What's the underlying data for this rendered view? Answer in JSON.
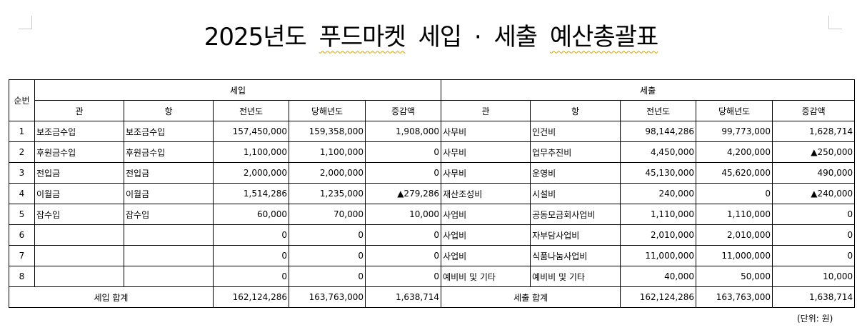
{
  "title": {
    "prefix": "2025년도",
    "name": "푸드마켓",
    "middle": "세입 · 세출",
    "suffix": "예산총괄표"
  },
  "table": {
    "col_no": "순번",
    "income_group": "세입",
    "expense_group": "세출",
    "sub_headers": {
      "gwan": "관",
      "hang": "항",
      "prev": "전년도",
      "curr": "당해년도",
      "diff": "증감액"
    },
    "rows": [
      {
        "no": "1",
        "in_gwan": "보조금수입",
        "in_hang": "보조금수입",
        "in_prev": "157,450,000",
        "in_curr": "159,358,000",
        "in_diff": "1,908,000",
        "ex_gwan": "사무비",
        "ex_hang": "인건비",
        "ex_prev": "98,144,286",
        "ex_curr": "99,773,000",
        "ex_diff": "1,628,714"
      },
      {
        "no": "2",
        "in_gwan": "후원금수입",
        "in_hang": "후원금수입",
        "in_prev": "1,100,000",
        "in_curr": "1,100,000",
        "in_diff": "0",
        "ex_gwan": "사무비",
        "ex_hang": "업무추진비",
        "ex_prev": "4,450,000",
        "ex_curr": "4,200,000",
        "ex_diff": "▲250,000"
      },
      {
        "no": "3",
        "in_gwan": "전입금",
        "in_hang": "전입금",
        "in_prev": "2,000,000",
        "in_curr": "2,000,000",
        "in_diff": "0",
        "ex_gwan": "사무비",
        "ex_hang": "운영비",
        "ex_prev": "45,130,000",
        "ex_curr": "45,620,000",
        "ex_diff": "490,000"
      },
      {
        "no": "4",
        "in_gwan": "이월금",
        "in_hang": "이월금",
        "in_prev": "1,514,286",
        "in_curr": "1,235,000",
        "in_diff": "▲279,286",
        "ex_gwan": "재산조성비",
        "ex_hang": "시설비",
        "ex_prev": "240,000",
        "ex_curr": "0",
        "ex_diff": "▲240,000"
      },
      {
        "no": "5",
        "in_gwan": "잡수입",
        "in_hang": "잡수입",
        "in_prev": "60,000",
        "in_curr": "70,000",
        "in_diff": "10,000",
        "ex_gwan": "사업비",
        "ex_hang": "공동모금회사업비",
        "ex_prev": "1,110,000",
        "ex_curr": "1,110,000",
        "ex_diff": "0"
      },
      {
        "no": "6",
        "in_gwan": "",
        "in_hang": "",
        "in_prev": "0",
        "in_curr": "0",
        "in_diff": "0",
        "ex_gwan": "사업비",
        "ex_hang": "자부담사업비",
        "ex_prev": "2,010,000",
        "ex_curr": "2,010,000",
        "ex_diff": "0"
      },
      {
        "no": "7",
        "in_gwan": "",
        "in_hang": "",
        "in_prev": "0",
        "in_curr": "0",
        "in_diff": "0",
        "ex_gwan": "사업비",
        "ex_hang": "식품나눔사업비",
        "ex_prev": "11,000,000",
        "ex_curr": "11,000,000",
        "ex_diff": "0"
      },
      {
        "no": "8",
        "in_gwan": "",
        "in_hang": "",
        "in_prev": "0",
        "in_curr": "0",
        "in_diff": "0",
        "ex_gwan": "예비비 및 기타",
        "ex_hang": "예비비 및 기타",
        "ex_prev": "40,000",
        "ex_curr": "50,000",
        "ex_diff": "10,000"
      }
    ],
    "total": {
      "in_label": "세입 합계",
      "in_prev": "162,124,286",
      "in_curr": "163,763,000",
      "in_diff": "1,638,714",
      "ex_label": "세출 합계",
      "ex_prev": "162,124,286",
      "ex_curr": "163,763,000",
      "ex_diff": "1,638,714"
    }
  },
  "unit_note": "(단위: 원)"
}
